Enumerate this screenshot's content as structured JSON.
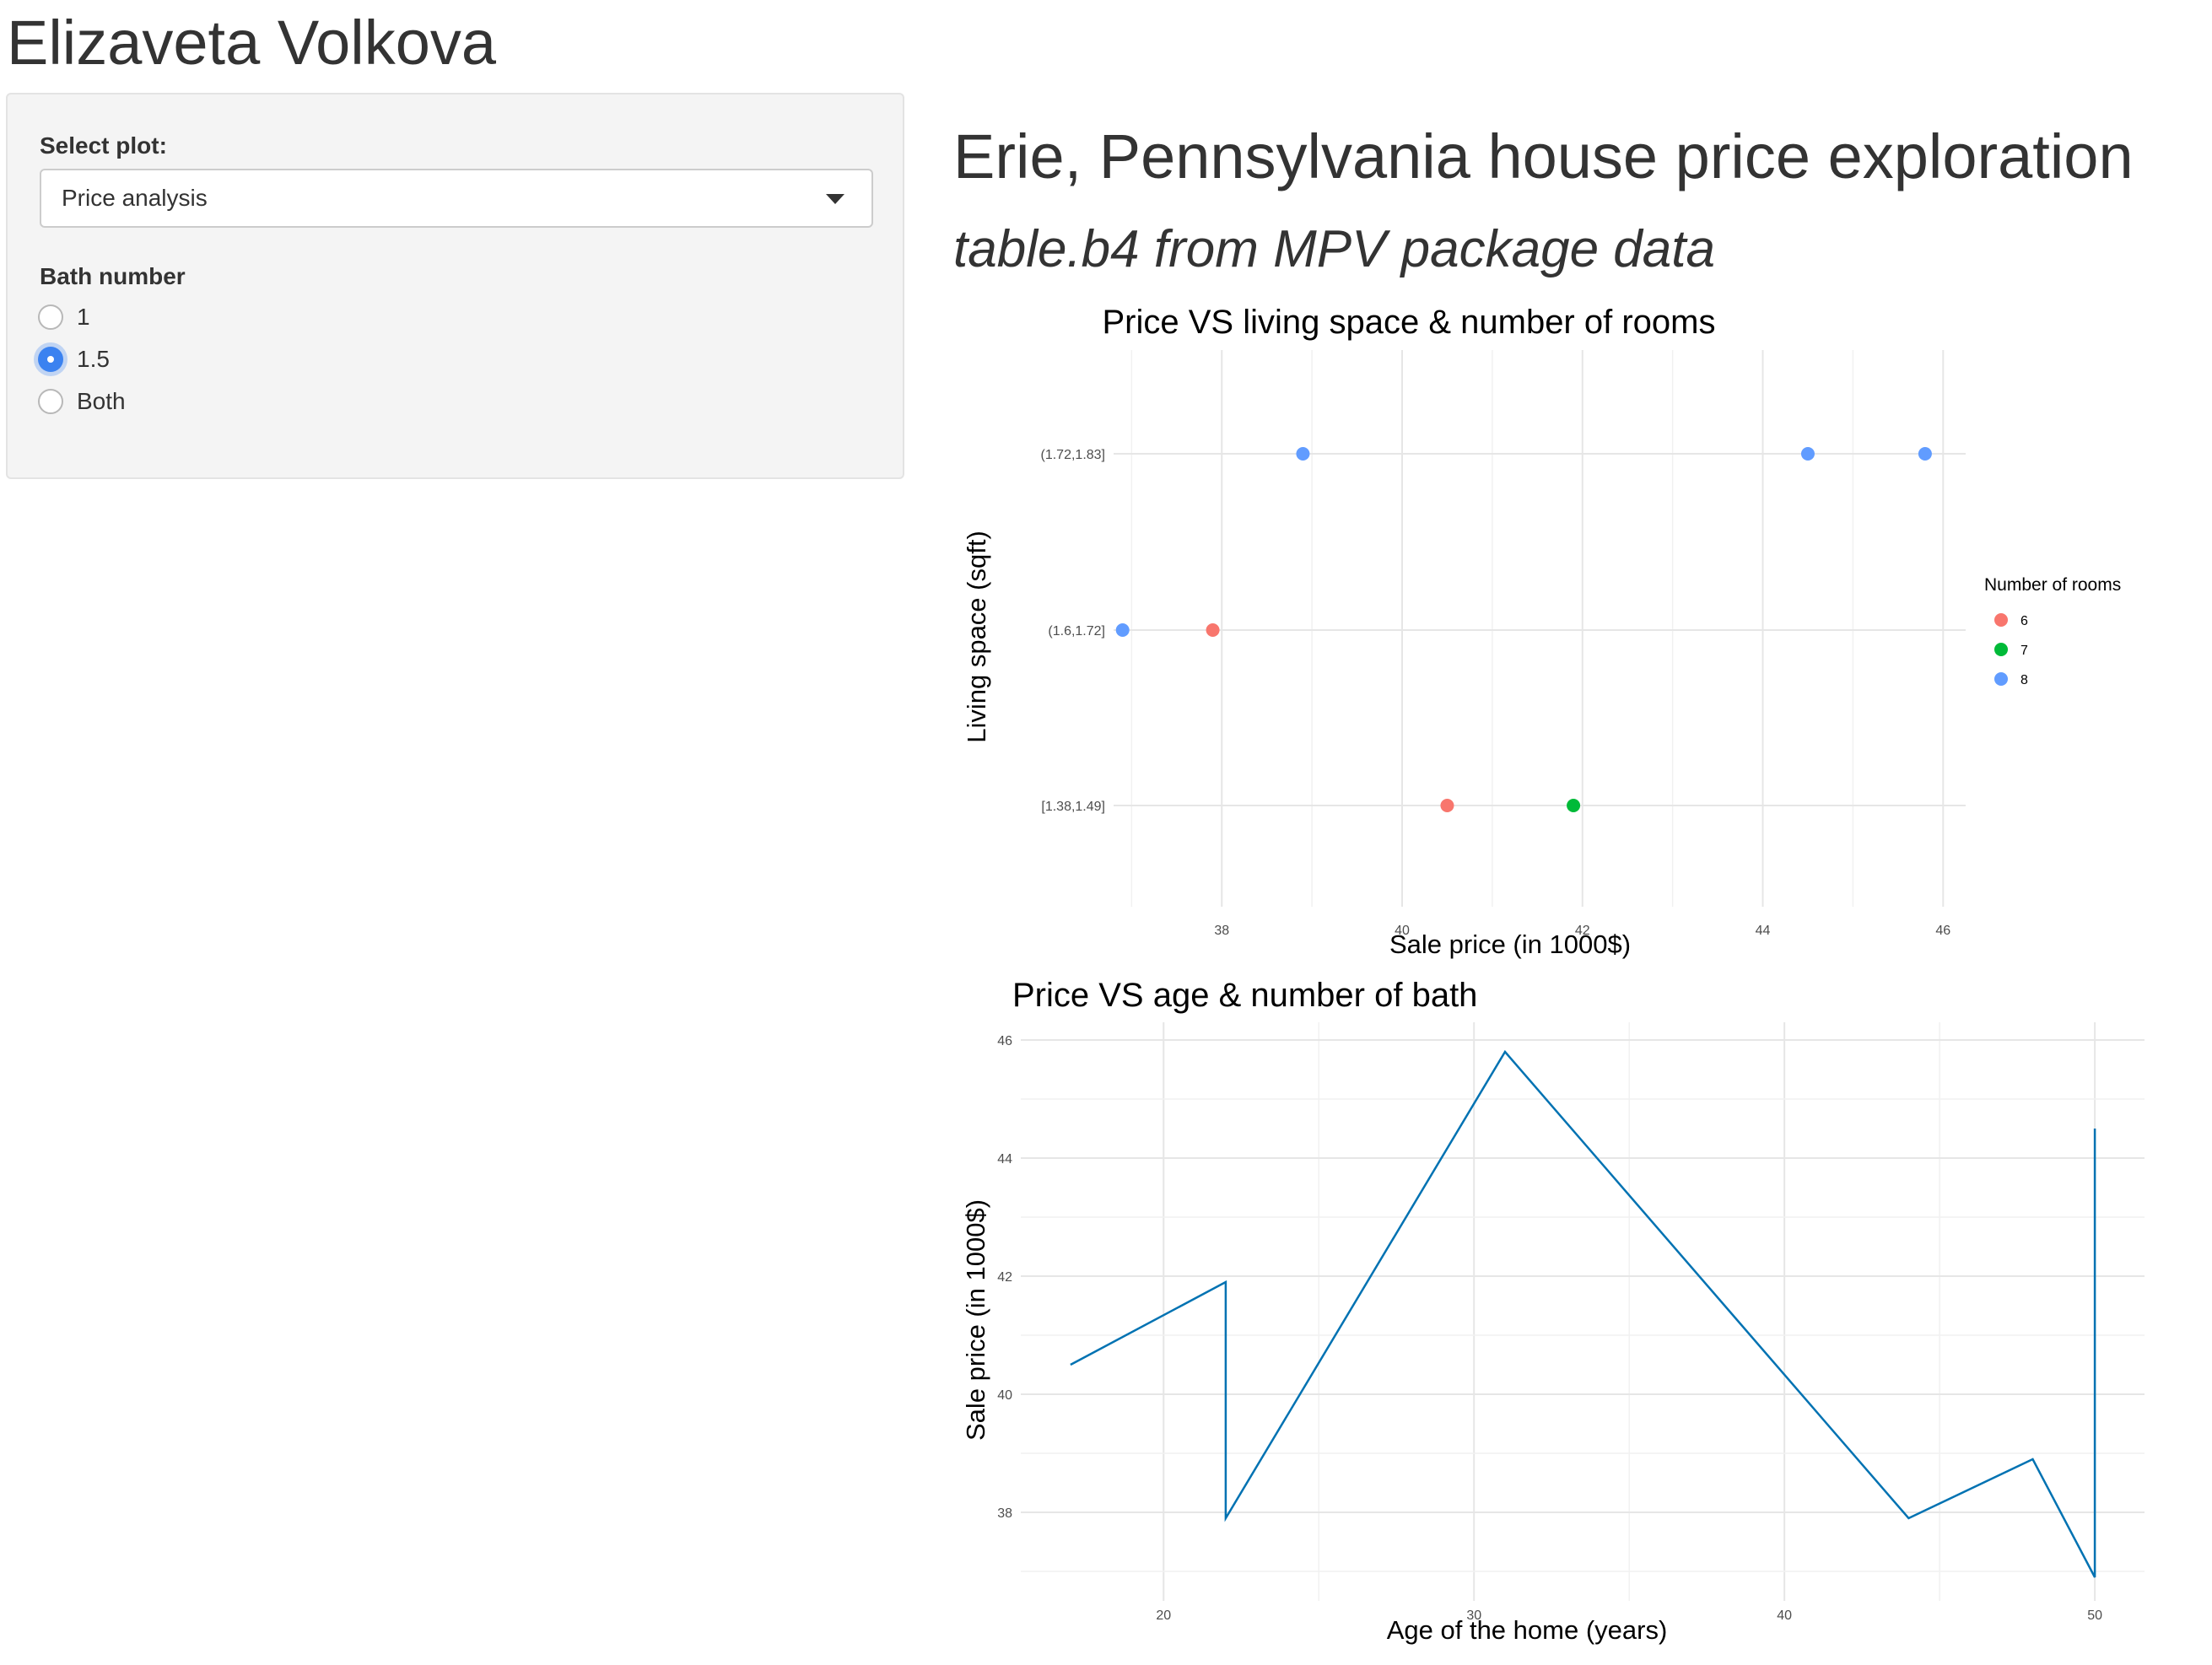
{
  "app": {
    "title": "Elizaveta Volkova"
  },
  "sidebar": {
    "select_label": "Select plot:",
    "select_value": "Price analysis",
    "radio_label": "Bath number",
    "options": [
      {
        "label": "1",
        "checked": false
      },
      {
        "label": "1.5",
        "checked": true
      },
      {
        "label": "Both",
        "checked": false
      }
    ]
  },
  "main": {
    "title": "Erie, Pennsylvania house price exploration",
    "subtitle": "table.b4 from MPV package data"
  },
  "chart_data": [
    {
      "type": "scatter",
      "title": "Price VS living space & number of rooms",
      "xlabel": "Sale price (in 1000$)",
      "ylabel": "Living space (sqft)",
      "xlim": [
        36.8,
        46.25
      ],
      "x_ticks": [
        38,
        40,
        42,
        44,
        46
      ],
      "y_categories": [
        "[1.38,1.49]",
        "(1.6,1.72]",
        "(1.72,1.83]"
      ],
      "grid": true,
      "legend": {
        "title": "Number of rooms",
        "position": "right"
      },
      "series": [
        {
          "name": "6",
          "color": "#F8766D",
          "points": [
            {
              "x": 37.9,
              "y": "(1.6,1.72]"
            },
            {
              "x": 40.5,
              "y": "[1.38,1.49]"
            }
          ]
        },
        {
          "name": "7",
          "color": "#00BA38",
          "points": [
            {
              "x": 41.9,
              "y": "[1.38,1.49]"
            }
          ]
        },
        {
          "name": "8",
          "color": "#619CFF",
          "points": [
            {
              "x": 36.9,
              "y": "(1.6,1.72]"
            },
            {
              "x": 38.9,
              "y": "(1.72,1.83]"
            },
            {
              "x": 44.5,
              "y": "(1.72,1.83]"
            },
            {
              "x": 45.8,
              "y": "(1.72,1.83]"
            }
          ]
        }
      ]
    },
    {
      "type": "line",
      "title": "Price VS age & number of bath",
      "xlabel": "Age of the home (years)",
      "ylabel": "Sale price (in 1000$)",
      "xlim": [
        15.4,
        51.6
      ],
      "ylim": [
        36.5,
        46.3
      ],
      "x_ticks": [
        20,
        30,
        40,
        50
      ],
      "y_ticks": [
        38,
        40,
        42,
        44,
        46
      ],
      "grid": true,
      "color": "#0072B2",
      "x": [
        17,
        22,
        22,
        31,
        44,
        48,
        50,
        50
      ],
      "y": [
        40.5,
        41.9,
        37.9,
        45.8,
        37.9,
        38.9,
        36.9,
        44.5
      ]
    }
  ]
}
